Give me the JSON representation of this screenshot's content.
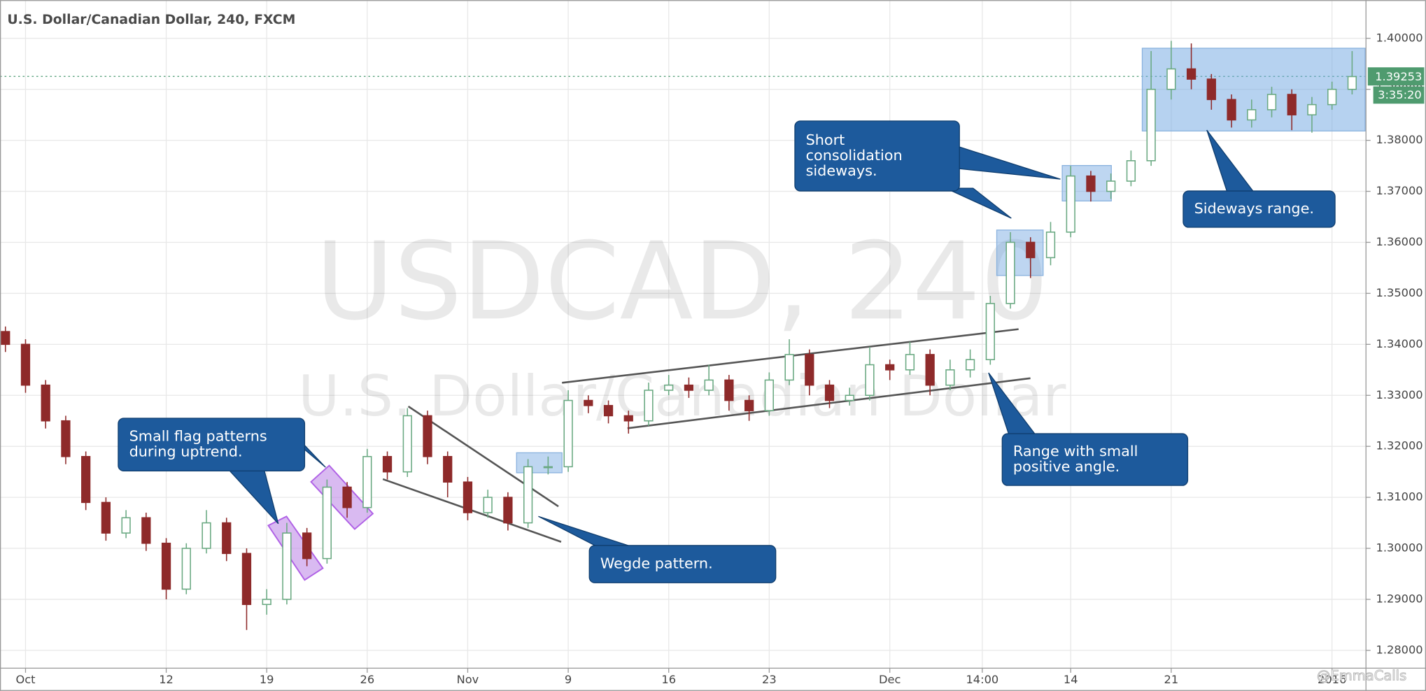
{
  "chart_data": {
    "type": "candlestick",
    "title": "U.S. Dollar/Canadian Dollar, 240, FXCM",
    "watermark": {
      "symbol": "USDCAD, 240",
      "name": "U.S. Dollar/Canadian Dollar"
    },
    "x": [
      0,
      1,
      2,
      3,
      4,
      5,
      6,
      7,
      8,
      9,
      10,
      11,
      12,
      13,
      14,
      15,
      16,
      17,
      18,
      19,
      20,
      21,
      22,
      23,
      24,
      25,
      26,
      27,
      28,
      29,
      30,
      31,
      32,
      33,
      34,
      35,
      36,
      37,
      38,
      39,
      40,
      41,
      42,
      43,
      44,
      45,
      46,
      47,
      48,
      49,
      50,
      51,
      52,
      53,
      54,
      55,
      56,
      57,
      58,
      59,
      60,
      61,
      62,
      63,
      64,
      65,
      66,
      67
    ],
    "open": [
      1.3425,
      1.34,
      1.332,
      1.325,
      1.318,
      1.309,
      1.303,
      1.306,
      1.301,
      1.292,
      1.3,
      1.305,
      1.299,
      1.289,
      1.29,
      1.303,
      1.298,
      1.312,
      1.308,
      1.318,
      1.315,
      1.326,
      1.318,
      1.313,
      1.307,
      1.31,
      1.305,
      1.316,
      1.316,
      1.329,
      1.328,
      1.326,
      1.325,
      1.331,
      1.332,
      1.331,
      1.333,
      1.329,
      1.327,
      1.333,
      1.338,
      1.332,
      1.329,
      1.33,
      1.336,
      1.335,
      1.338,
      1.332,
      1.335,
      1.337,
      1.348,
      1.36,
      1.357,
      1.362,
      1.373,
      1.37,
      1.372,
      1.376,
      1.39,
      1.394,
      1.392,
      1.388,
      1.384,
      1.386,
      1.389,
      1.385,
      1.387,
      1.39
    ],
    "high": [
      1.3435,
      1.341,
      1.333,
      1.326,
      1.319,
      1.31,
      1.3075,
      1.307,
      1.302,
      1.301,
      1.3075,
      1.306,
      1.3,
      1.292,
      1.305,
      1.304,
      1.3135,
      1.313,
      1.3195,
      1.319,
      1.3275,
      1.327,
      1.319,
      1.314,
      1.3115,
      1.311,
      1.3175,
      1.318,
      1.331,
      1.33,
      1.329,
      1.327,
      1.3325,
      1.334,
      1.3335,
      1.336,
      1.334,
      1.33,
      1.3345,
      1.341,
      1.339,
      1.333,
      1.3315,
      1.3395,
      1.337,
      1.3405,
      1.339,
      1.337,
      1.339,
      1.3495,
      1.362,
      1.361,
      1.364,
      1.375,
      1.374,
      1.3735,
      1.378,
      1.3975,
      1.3995,
      1.399,
      1.393,
      1.389,
      1.388,
      1.3905,
      1.39,
      1.3885,
      1.3915,
      1.3975
    ],
    "low": [
      1.3385,
      1.3305,
      1.3235,
      1.3165,
      1.3075,
      1.3015,
      1.302,
      1.2995,
      1.29,
      1.291,
      1.299,
      1.2975,
      1.284,
      1.287,
      1.289,
      1.2965,
      1.297,
      1.306,
      1.307,
      1.3135,
      1.314,
      1.3165,
      1.31,
      1.3055,
      1.306,
      1.3035,
      1.304,
      1.3145,
      1.315,
      1.3265,
      1.3245,
      1.3225,
      1.324,
      1.33,
      1.3295,
      1.33,
      1.327,
      1.325,
      1.326,
      1.332,
      1.33,
      1.3275,
      1.328,
      1.329,
      1.333,
      1.334,
      1.33,
      1.331,
      1.3335,
      1.336,
      1.347,
      1.353,
      1.3555,
      1.361,
      1.368,
      1.3685,
      1.371,
      1.375,
      1.388,
      1.39,
      1.386,
      1.3825,
      1.3825,
      1.3845,
      1.382,
      1.3815,
      1.386,
      1.389
    ],
    "close": [
      1.34,
      1.332,
      1.325,
      1.318,
      1.309,
      1.303,
      1.306,
      1.301,
      1.292,
      1.3,
      1.305,
      1.299,
      1.289,
      1.29,
      1.303,
      1.298,
      1.312,
      1.308,
      1.318,
      1.315,
      1.326,
      1.318,
      1.313,
      1.307,
      1.31,
      1.305,
      1.316,
      1.316,
      1.329,
      1.328,
      1.326,
      1.325,
      1.331,
      1.332,
      1.331,
      1.333,
      1.329,
      1.327,
      1.333,
      1.338,
      1.332,
      1.329,
      1.33,
      1.336,
      1.335,
      1.338,
      1.332,
      1.335,
      1.337,
      1.348,
      1.36,
      1.357,
      1.362,
      1.373,
      1.37,
      1.372,
      1.376,
      1.39,
      1.394,
      1.392,
      1.388,
      1.384,
      1.386,
      1.389,
      1.385,
      1.387,
      1.39,
      1.3925
    ],
    "up_color": "#6aa982",
    "down_color": "#8e2a2a",
    "xlim": [
      -0.27,
      67.69
    ],
    "xticks": [
      {
        "value": 1,
        "label": "Oct"
      },
      {
        "value": 8,
        "label": "12"
      },
      {
        "value": 13,
        "label": "19"
      },
      {
        "value": 18,
        "label": "26"
      },
      {
        "value": 23,
        "label": "Nov"
      },
      {
        "value": 28,
        "label": "9"
      },
      {
        "value": 33,
        "label": "16"
      },
      {
        "value": 38,
        "label": "23"
      },
      {
        "value": 44,
        "label": "Dec"
      },
      {
        "value": 48.6,
        "label": "14:00"
      },
      {
        "value": 53,
        "label": "14"
      },
      {
        "value": 58,
        "label": "21"
      },
      {
        "value": 66,
        "label": "2016"
      }
    ],
    "ylim": [
      1.2765,
      1.4075
    ],
    "yticks": [
      {
        "value": 1.28,
        "label": "1.28000"
      },
      {
        "value": 1.29,
        "label": "1.29000"
      },
      {
        "value": 1.3,
        "label": "1.30000"
      },
      {
        "value": 1.31,
        "label": "1.31000"
      },
      {
        "value": 1.32,
        "label": "1.32000"
      },
      {
        "value": 1.33,
        "label": "1.33000"
      },
      {
        "value": 1.34,
        "label": "1.34000"
      },
      {
        "value": 1.35,
        "label": "1.35000"
      },
      {
        "value": 1.36,
        "label": "1.36000"
      },
      {
        "value": 1.37,
        "label": "1.37000"
      },
      {
        "value": 1.38,
        "label": "1.38000"
      },
      {
        "value": 1.39,
        "label": "1.39000"
      },
      {
        "value": 1.4,
        "label": "1.40000"
      }
    ],
    "grid": true,
    "last_price": {
      "value": 1.39253,
      "label": "1.39253"
    },
    "countdown": "3:35:20",
    "annotations": [
      {
        "lines": [
          "Small flag patterns",
          "during uptrend."
        ]
      },
      {
        "lines": [
          "Wegde pattern."
        ]
      },
      {
        "lines": [
          "Range with small",
          "positive angle."
        ]
      },
      {
        "lines": [
          "Short",
          "consolidation",
          "sideways."
        ]
      },
      {
        "lines": [
          "Sideways range."
        ]
      }
    ],
    "credit": "@EmmaCalls"
  }
}
